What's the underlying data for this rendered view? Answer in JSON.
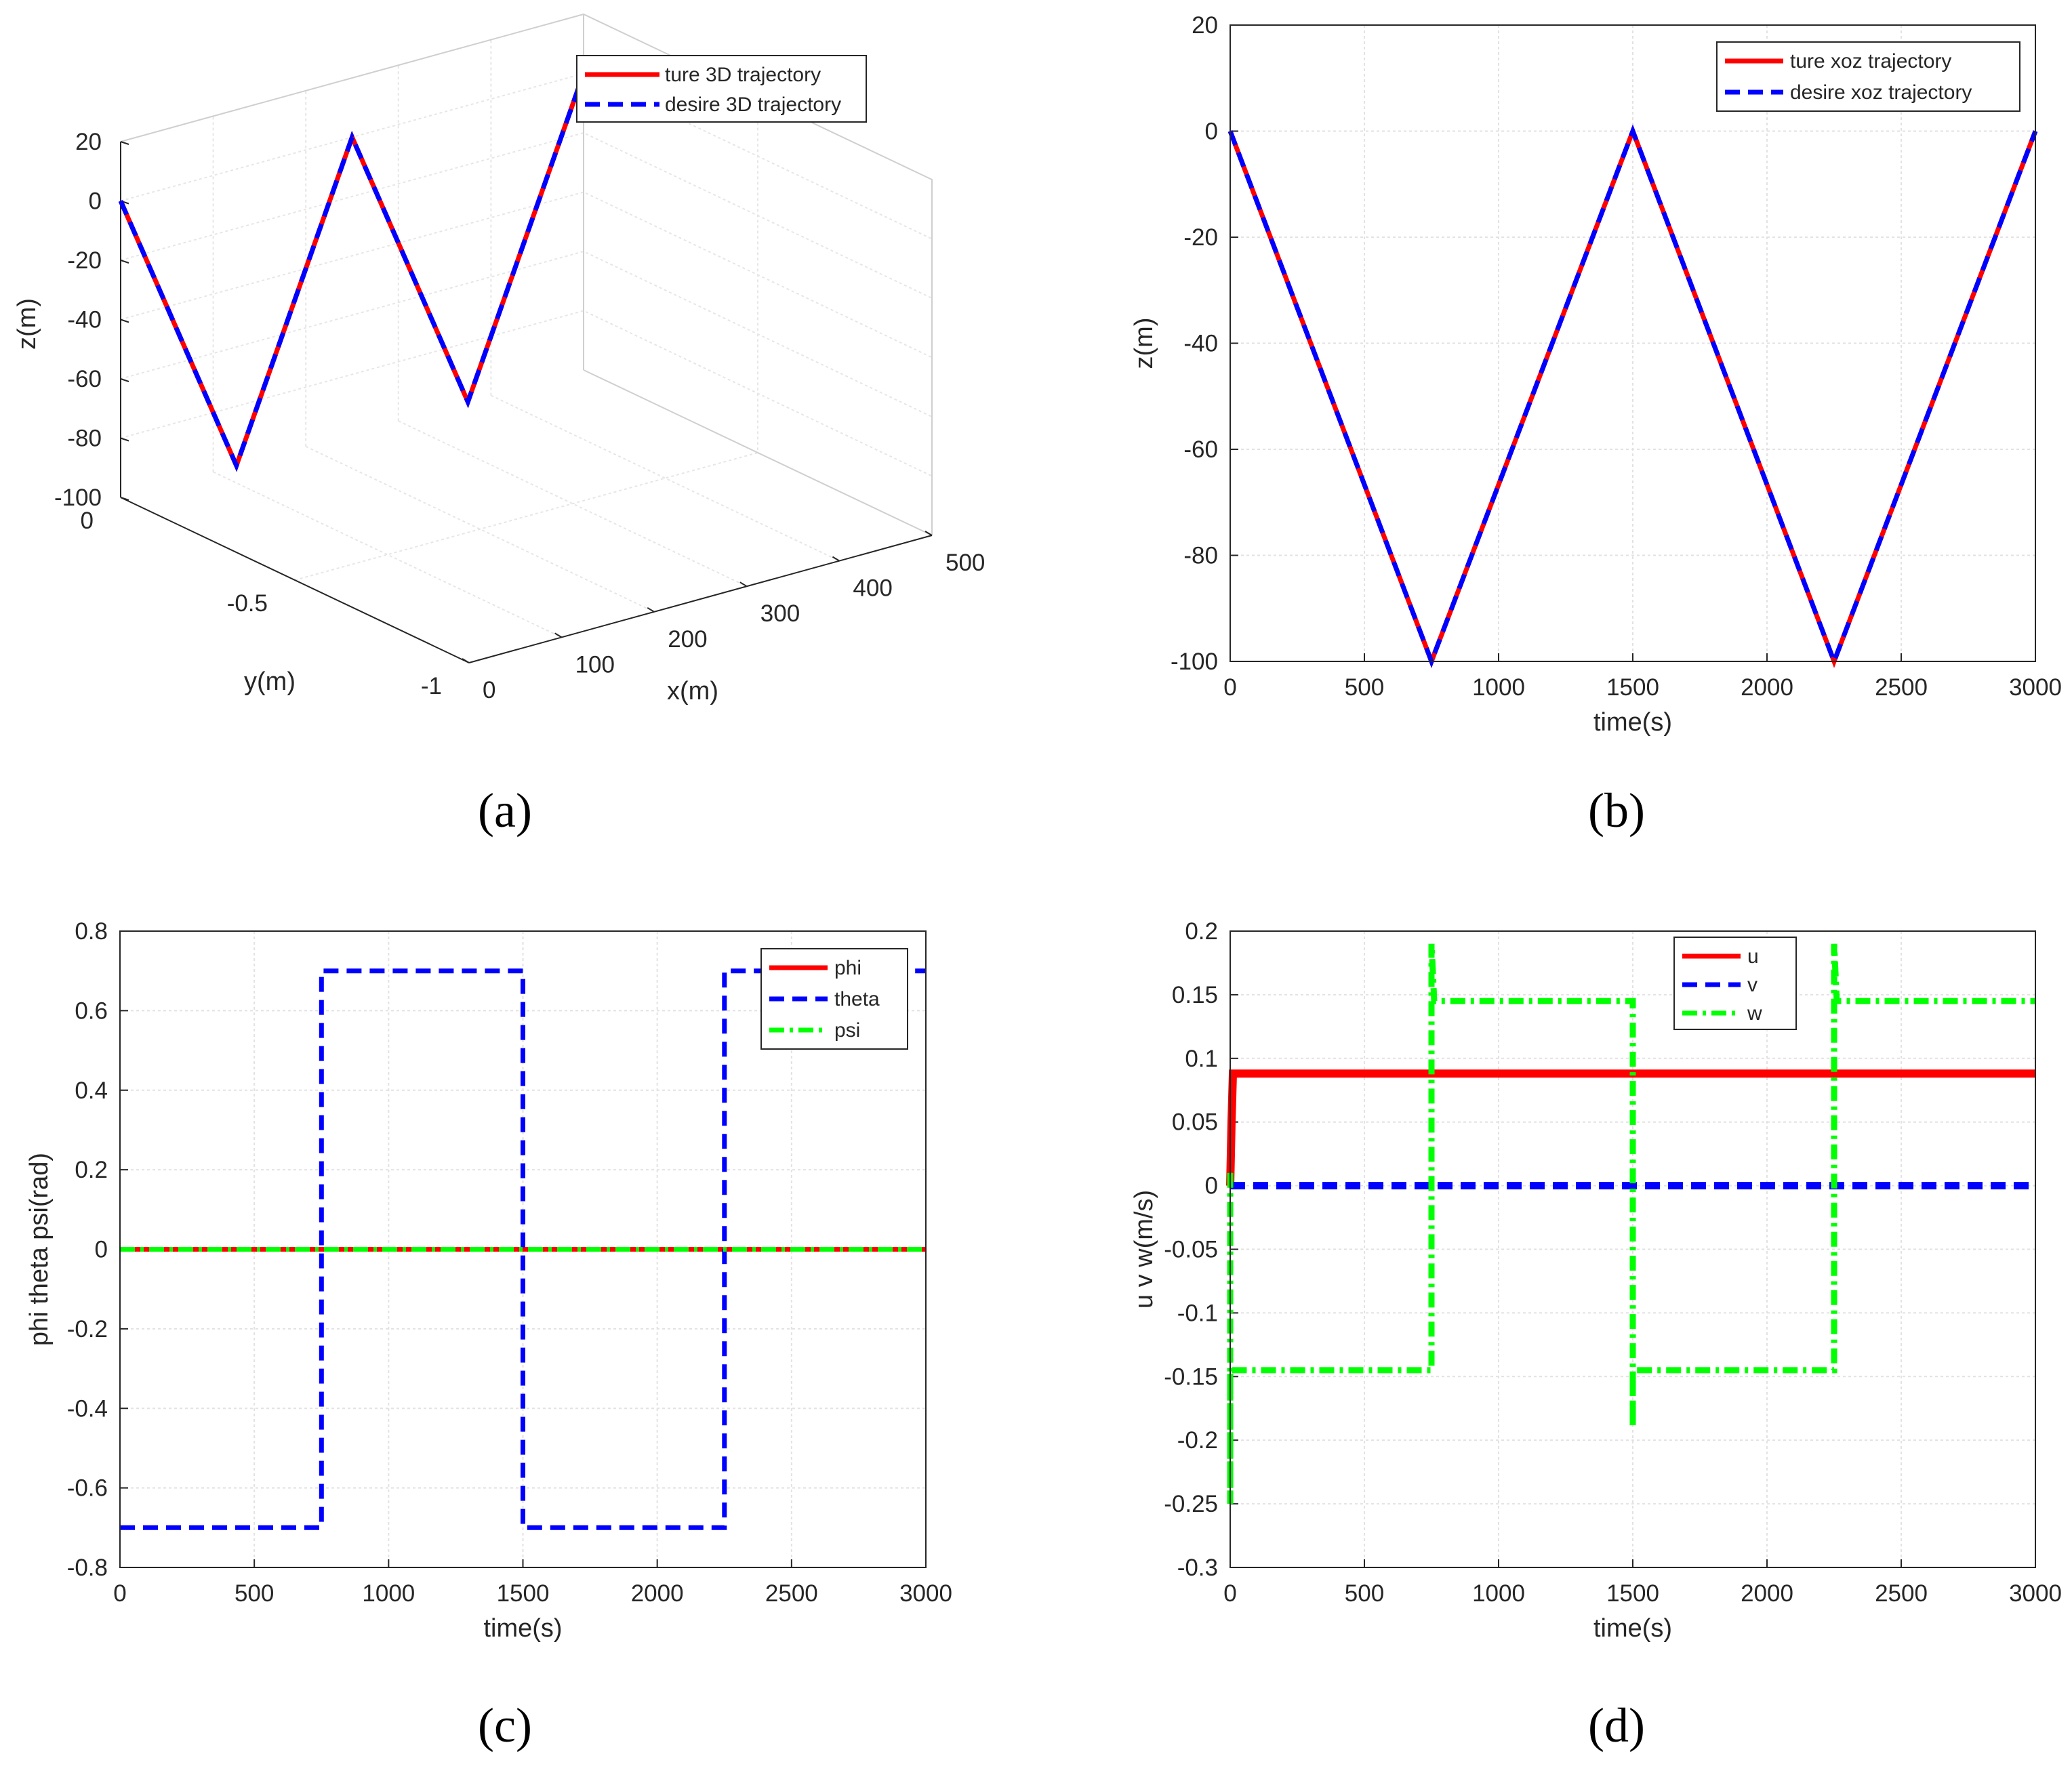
{
  "captions": [
    "(a)",
    "(b)",
    "(c)",
    "(d)"
  ],
  "colors": {
    "red": "#ff0000",
    "blue": "#0000ff",
    "green": "#00ff00",
    "axis": "#262626",
    "grid": "#e2e2e2"
  },
  "chart_data": [
    {
      "id": "a",
      "type": "line",
      "projection": "3d",
      "title": "",
      "xlabel": "x(m)",
      "ylabel": "y(m)",
      "zlabel": "z(m)",
      "xlim": [
        0,
        500
      ],
      "ylim": [
        -1,
        0
      ],
      "zlim": [
        -100,
        20
      ],
      "xticks": [
        "0",
        "100",
        "200",
        "300",
        "400",
        "500"
      ],
      "yticks": [
        "0",
        "-0.5",
        "-1"
      ],
      "zticks": [
        "20",
        "0",
        "-20",
        "-40",
        "-60",
        "-80",
        "-100"
      ],
      "legend_position": "top-right",
      "series": [
        {
          "name": "ture 3D trajectory",
          "color": "#ff0000",
          "style": "solid",
          "x": [
            0,
            125,
            250,
            375,
            500
          ],
          "y": [
            0,
            0,
            0,
            0,
            0
          ],
          "z": [
            0,
            -100,
            0,
            -100,
            0
          ]
        },
        {
          "name": "desire 3D trajectory",
          "color": "#0000ff",
          "style": "dashed",
          "x": [
            0,
            125,
            250,
            375,
            500
          ],
          "y": [
            0,
            0,
            0,
            0,
            0
          ],
          "z": [
            0,
            -100,
            0,
            -100,
            0
          ]
        }
      ]
    },
    {
      "id": "b",
      "type": "line",
      "title": "",
      "xlabel": "time(s)",
      "ylabel": "z(m)",
      "xlim": [
        0,
        3000
      ],
      "ylim": [
        -100,
        20
      ],
      "xticks": [
        "0",
        "500",
        "1000",
        "1500",
        "2000",
        "2500",
        "3000"
      ],
      "yticks": [
        "-100",
        "-80",
        "-60",
        "-40",
        "-20",
        "0",
        "20"
      ],
      "grid": true,
      "legend_position": "top-right",
      "series": [
        {
          "name": "ture xoz trajectory",
          "color": "#ff0000",
          "style": "solid",
          "x": [
            0,
            750,
            1500,
            2250,
            3000
          ],
          "y": [
            0,
            -100,
            0,
            -100,
            0
          ]
        },
        {
          "name": "desire  xoz trajectory",
          "color": "#0000ff",
          "style": "dashed",
          "x": [
            0,
            750,
            1500,
            2250,
            3000
          ],
          "y": [
            0,
            -100,
            0,
            -100,
            0
          ]
        }
      ]
    },
    {
      "id": "c",
      "type": "line",
      "title": "",
      "xlabel": "time(s)",
      "ylabel": "phi theta psi(rad)",
      "xlim": [
        0,
        3000
      ],
      "ylim": [
        -0.8,
        0.8
      ],
      "xticks": [
        "0",
        "500",
        "1000",
        "1500",
        "2000",
        "2500",
        "3000"
      ],
      "yticks": [
        "-0.8",
        "-0.6",
        "-0.4",
        "-0.2",
        "0",
        "0.2",
        "0.4",
        "0.6",
        "0.8"
      ],
      "grid": true,
      "legend_position": "top-right",
      "series": [
        {
          "name": "phi",
          "color": "#ff0000",
          "style": "solid",
          "x": [
            0,
            3000
          ],
          "y": [
            0,
            0
          ]
        },
        {
          "name": "theta",
          "color": "#0000ff",
          "style": "dashed",
          "x": [
            0,
            750,
            750,
            1500,
            1500,
            2250,
            2250,
            3000
          ],
          "y": [
            -0.7,
            -0.7,
            0.7,
            0.7,
            -0.7,
            -0.7,
            0.7,
            0.7
          ]
        },
        {
          "name": "psi",
          "color": "#00ff00",
          "style": "dashdot",
          "x": [
            0,
            3000
          ],
          "y": [
            0,
            0
          ]
        }
      ]
    },
    {
      "id": "d",
      "type": "line",
      "title": "",
      "xlabel": "time(s)",
      "ylabel": "u v w(m/s)",
      "xlim": [
        0,
        3000
      ],
      "ylim": [
        -0.3,
        0.2
      ],
      "xticks": [
        "0",
        "500",
        "1000",
        "1500",
        "2000",
        "2500",
        "3000"
      ],
      "yticks": [
        "-0.3",
        "-0.25",
        "-0.2",
        "-0.15",
        "-0.1",
        "-0.05",
        "0",
        "0.05",
        "0.1",
        "0.15",
        "0.2"
      ],
      "grid": true,
      "legend_position": "top-center",
      "series": [
        {
          "name": "u",
          "color": "#ff0000",
          "style": "solid",
          "x": [
            0,
            5,
            10,
            3000
          ],
          "y": [
            0,
            0.05,
            0.088,
            0.088
          ]
        },
        {
          "name": "v",
          "color": "#0000ff",
          "style": "dashed",
          "x": [
            0,
            3000
          ],
          "y": [
            0,
            0
          ]
        },
        {
          "name": "w",
          "color": "#00ff00",
          "style": "dashdot",
          "x": [
            0,
            0,
            0,
            750,
            750,
            760,
            1500,
            1500,
            1500,
            2250,
            2250,
            2260,
            3000
          ],
          "y": [
            0.01,
            -0.25,
            -0.145,
            -0.145,
            0.19,
            0.145,
            0.145,
            -0.19,
            -0.145,
            -0.145,
            0.19,
            0.145,
            0.145
          ]
        }
      ]
    }
  ]
}
